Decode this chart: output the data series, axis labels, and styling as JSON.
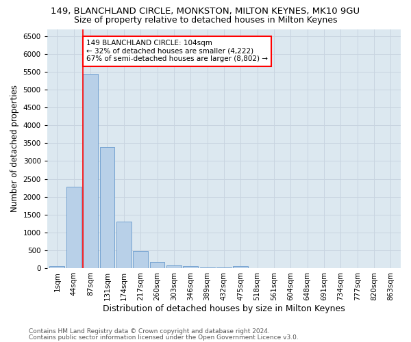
{
  "title": "149, BLANCHLAND CIRCLE, MONKSTON, MILTON KEYNES, MK10 9GU",
  "subtitle": "Size of property relative to detached houses in Milton Keynes",
  "xlabel": "Distribution of detached houses by size in Milton Keynes",
  "ylabel": "Number of detached properties",
  "footer_line1": "Contains HM Land Registry data © Crown copyright and database right 2024.",
  "footer_line2": "Contains public sector information licensed under the Open Government Licence v3.0.",
  "bar_labels": [
    "1sqm",
    "44sqm",
    "87sqm",
    "131sqm",
    "174sqm",
    "217sqm",
    "260sqm",
    "303sqm",
    "346sqm",
    "389sqm",
    "432sqm",
    "475sqm",
    "518sqm",
    "561sqm",
    "604sqm",
    "648sqm",
    "691sqm",
    "734sqm",
    "777sqm",
    "820sqm",
    "863sqm"
  ],
  "bar_values": [
    60,
    2280,
    5450,
    3400,
    1300,
    475,
    165,
    80,
    50,
    25,
    15,
    55,
    5,
    0,
    0,
    0,
    0,
    0,
    0,
    0,
    0
  ],
  "bar_color": "#b8d0e8",
  "bar_edge_color": "#6699cc",
  "vline_color": "red",
  "vline_bar_index": 2,
  "annotation_text": "149 BLANCHLAND CIRCLE: 104sqm\n← 32% of detached houses are smaller (4,222)\n67% of semi-detached houses are larger (8,802) →",
  "annotation_box_edgecolor": "red",
  "annotation_box_facecolor": "white",
  "ylim": [
    0,
    6700
  ],
  "yticks": [
    0,
    500,
    1000,
    1500,
    2000,
    2500,
    3000,
    3500,
    4000,
    4500,
    5000,
    5500,
    6000,
    6500
  ],
  "grid_color": "#c8d4e0",
  "bg_color": "#dce8f0",
  "title_fontsize": 9.5,
  "subtitle_fontsize": 9,
  "xlabel_fontsize": 9,
  "ylabel_fontsize": 8.5,
  "tick_fontsize": 7.5,
  "annotation_fontsize": 7.5,
  "footer_fontsize": 6.5
}
